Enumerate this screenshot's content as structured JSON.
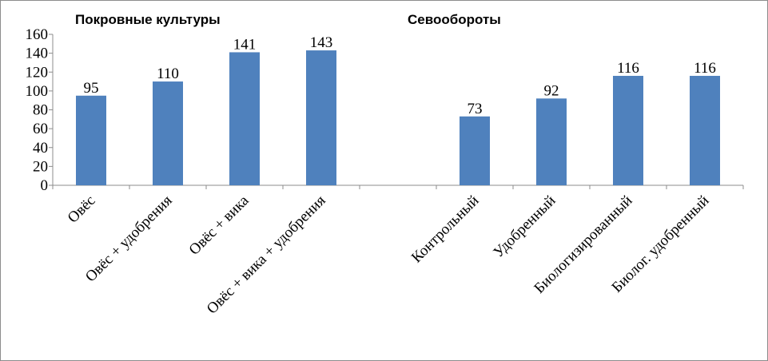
{
  "chart_data": {
    "type": "bar",
    "group_titles": [
      "Покровные культуры",
      "Севообороты"
    ],
    "categories": [
      "Овёс",
      "Овёс + удобрения",
      "Овёс + вика",
      "Овёс + вика + удобрения",
      "",
      "Контрольный",
      "Удобренный",
      "Биологизированный",
      "Биолог. удобренный"
    ],
    "values": [
      95,
      110,
      141,
      143,
      null,
      73,
      92,
      116,
      116
    ],
    "ylim": [
      0,
      160
    ],
    "yticks": [
      0,
      20,
      40,
      60,
      80,
      100,
      120,
      140,
      160
    ],
    "grid": false,
    "legend": "none",
    "bar_color": "#4f81bd"
  }
}
